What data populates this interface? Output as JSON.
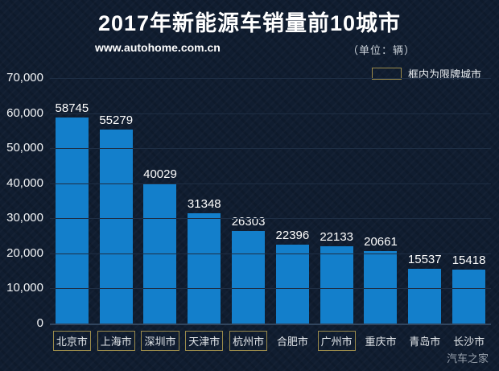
{
  "header": {
    "title": "2017年新能源车销量前10城市",
    "source": "www.autohome.com.cn",
    "unit": "（单位：辆）"
  },
  "legend": {
    "label": "框内为限牌城市"
  },
  "watermark": "汽车之家",
  "colors": {
    "background": "#101d30",
    "bar": "#137fcb",
    "legend_box_border": "#9b8b4b",
    "axis_line": "#31455e",
    "gridline": "#1e2e44",
    "text": "#ffffff"
  },
  "chart_data": {
    "type": "bar",
    "title": "2017年新能源车销量前10城市",
    "unit": "辆",
    "categories": [
      "北京市",
      "上海市",
      "深圳市",
      "天津市",
      "杭州市",
      "合肥市",
      "广州市",
      "重庆市",
      "青岛市",
      "长沙市"
    ],
    "values": [
      58745,
      55279,
      40029,
      31348,
      26303,
      22396,
      22133,
      20661,
      15537,
      15418
    ],
    "restricted_plate_city": [
      true,
      true,
      true,
      true,
      true,
      false,
      true,
      false,
      false,
      false
    ],
    "legend_note": "框内为限牌城市",
    "xlabel": "",
    "ylabel": "",
    "ylim": [
      0,
      70000
    ],
    "yticks": [
      0,
      10000,
      20000,
      30000,
      40000,
      50000,
      60000,
      70000
    ],
    "grid": true,
    "legend_position": "top-right"
  }
}
